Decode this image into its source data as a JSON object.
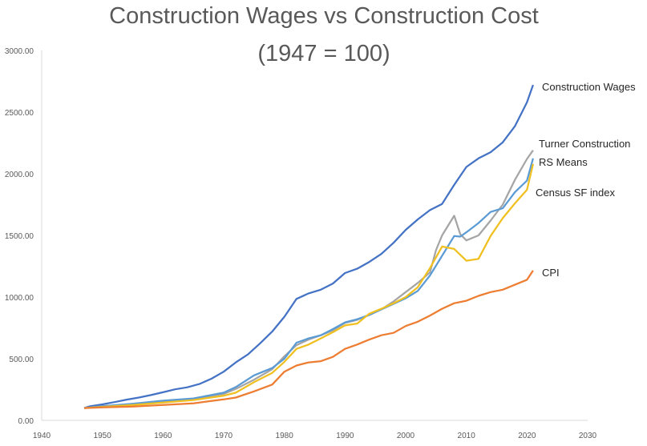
{
  "chart_data": {
    "type": "line",
    "title": "Construction Wages vs Construction Cost",
    "subtitle": "(1947 = 100)",
    "xlabel": "",
    "ylabel": "",
    "xlim": [
      1940,
      2030
    ],
    "ylim": [
      0,
      3000
    ],
    "x_ticks": [
      1940,
      1950,
      1960,
      1970,
      1980,
      1990,
      2000,
      2010,
      2020,
      2030
    ],
    "y_ticks": [
      0,
      500,
      1000,
      1500,
      2000,
      2500,
      3000
    ],
    "y_tick_labels": [
      "0.00",
      "500.00",
      "1000.00",
      "1500.00",
      "2000.00",
      "2500.00",
      "3000.00"
    ],
    "grid": false,
    "legend": "labels at line ends",
    "series": [
      {
        "name": "Construction Wages",
        "color": "#4472C4",
        "points": [
          [
            1947,
            100
          ],
          [
            1948,
            115
          ],
          [
            1950,
            130
          ],
          [
            1952,
            148
          ],
          [
            1954,
            168
          ],
          [
            1956,
            185
          ],
          [
            1958,
            205
          ],
          [
            1960,
            228
          ],
          [
            1962,
            252
          ],
          [
            1964,
            268
          ],
          [
            1966,
            295
          ],
          [
            1968,
            338
          ],
          [
            1970,
            395
          ],
          [
            1972,
            470
          ],
          [
            1974,
            535
          ],
          [
            1976,
            625
          ],
          [
            1978,
            720
          ],
          [
            1980,
            840
          ],
          [
            1982,
            985
          ],
          [
            1984,
            1030
          ],
          [
            1986,
            1060
          ],
          [
            1988,
            1110
          ],
          [
            1990,
            1195
          ],
          [
            1992,
            1230
          ],
          [
            1994,
            1285
          ],
          [
            1996,
            1350
          ],
          [
            1998,
            1440
          ],
          [
            2000,
            1545
          ],
          [
            2002,
            1630
          ],
          [
            2004,
            1705
          ],
          [
            2006,
            1755
          ],
          [
            2008,
            1910
          ],
          [
            2010,
            2055
          ],
          [
            2012,
            2125
          ],
          [
            2014,
            2175
          ],
          [
            2016,
            2255
          ],
          [
            2018,
            2385
          ],
          [
            2020,
            2580
          ],
          [
            2021,
            2720
          ]
        ]
      },
      {
        "name": "Turner Construction",
        "color": "#A5A5A5",
        "points": [
          [
            1947,
            100
          ],
          [
            1950,
            115
          ],
          [
            1955,
            130
          ],
          [
            1960,
            155
          ],
          [
            1965,
            175
          ],
          [
            1970,
            215
          ],
          [
            1972,
            255
          ],
          [
            1975,
            330
          ],
          [
            1978,
            415
          ],
          [
            1980,
            520
          ],
          [
            1982,
            610
          ],
          [
            1984,
            655
          ],
          [
            1986,
            690
          ],
          [
            1988,
            730
          ],
          [
            1990,
            790
          ],
          [
            1992,
            815
          ],
          [
            1994,
            855
          ],
          [
            1996,
            900
          ],
          [
            1998,
            965
          ],
          [
            2000,
            1040
          ],
          [
            2002,
            1115
          ],
          [
            2004,
            1200
          ],
          [
            2005,
            1380
          ],
          [
            2006,
            1500
          ],
          [
            2008,
            1660
          ],
          [
            2009,
            1510
          ],
          [
            2010,
            1460
          ],
          [
            2012,
            1500
          ],
          [
            2014,
            1620
          ],
          [
            2016,
            1750
          ],
          [
            2018,
            1950
          ],
          [
            2020,
            2120
          ],
          [
            2021,
            2190
          ]
        ]
      },
      {
        "name": "RS Means",
        "color": "#5B9BD5",
        "points": [
          [
            1947,
            100
          ],
          [
            1950,
            115
          ],
          [
            1955,
            135
          ],
          [
            1960,
            160
          ],
          [
            1965,
            178
          ],
          [
            1970,
            225
          ],
          [
            1972,
            270
          ],
          [
            1975,
            365
          ],
          [
            1978,
            425
          ],
          [
            1980,
            500
          ],
          [
            1982,
            630
          ],
          [
            1984,
            665
          ],
          [
            1986,
            690
          ],
          [
            1988,
            740
          ],
          [
            1990,
            795
          ],
          [
            1992,
            820
          ],
          [
            1994,
            855
          ],
          [
            1996,
            900
          ],
          [
            1998,
            945
          ],
          [
            2000,
            990
          ],
          [
            2002,
            1050
          ],
          [
            2004,
            1175
          ],
          [
            2006,
            1335
          ],
          [
            2008,
            1495
          ],
          [
            2009,
            1490
          ],
          [
            2010,
            1525
          ],
          [
            2012,
            1600
          ],
          [
            2014,
            1690
          ],
          [
            2016,
            1720
          ],
          [
            2018,
            1850
          ],
          [
            2020,
            1945
          ],
          [
            2021,
            2125
          ]
        ]
      },
      {
        "name": "Census SF index",
        "color": "#F0C020",
        "points": [
          [
            1947,
            100
          ],
          [
            1950,
            110
          ],
          [
            1955,
            125
          ],
          [
            1960,
            145
          ],
          [
            1965,
            165
          ],
          [
            1970,
            200
          ],
          [
            1972,
            225
          ],
          [
            1975,
            310
          ],
          [
            1978,
            385
          ],
          [
            1980,
            475
          ],
          [
            1982,
            580
          ],
          [
            1984,
            615
          ],
          [
            1986,
            665
          ],
          [
            1988,
            715
          ],
          [
            1990,
            770
          ],
          [
            1992,
            785
          ],
          [
            1994,
            865
          ],
          [
            1996,
            905
          ],
          [
            1998,
            950
          ],
          [
            2000,
            1000
          ],
          [
            2002,
            1080
          ],
          [
            2004,
            1235
          ],
          [
            2006,
            1410
          ],
          [
            2008,
            1390
          ],
          [
            2010,
            1295
          ],
          [
            2012,
            1310
          ],
          [
            2014,
            1495
          ],
          [
            2016,
            1640
          ],
          [
            2018,
            1760
          ],
          [
            2020,
            1870
          ],
          [
            2021,
            2080
          ]
        ]
      },
      {
        "name": "CPI",
        "color": "#ED7D31",
        "points": [
          [
            1947,
            100
          ],
          [
            1950,
            105
          ],
          [
            1955,
            112
          ],
          [
            1960,
            125
          ],
          [
            1965,
            138
          ],
          [
            1970,
            170
          ],
          [
            1972,
            185
          ],
          [
            1975,
            235
          ],
          [
            1978,
            290
          ],
          [
            1980,
            395
          ],
          [
            1982,
            445
          ],
          [
            1984,
            470
          ],
          [
            1986,
            480
          ],
          [
            1988,
            515
          ],
          [
            1990,
            580
          ],
          [
            1992,
            615
          ],
          [
            1994,
            655
          ],
          [
            1996,
            690
          ],
          [
            1998,
            710
          ],
          [
            2000,
            765
          ],
          [
            2002,
            800
          ],
          [
            2004,
            850
          ],
          [
            2006,
            905
          ],
          [
            2008,
            950
          ],
          [
            2010,
            970
          ],
          [
            2012,
            1010
          ],
          [
            2014,
            1040
          ],
          [
            2016,
            1060
          ],
          [
            2018,
            1100
          ],
          [
            2020,
            1140
          ],
          [
            2021,
            1215
          ]
        ]
      }
    ]
  }
}
